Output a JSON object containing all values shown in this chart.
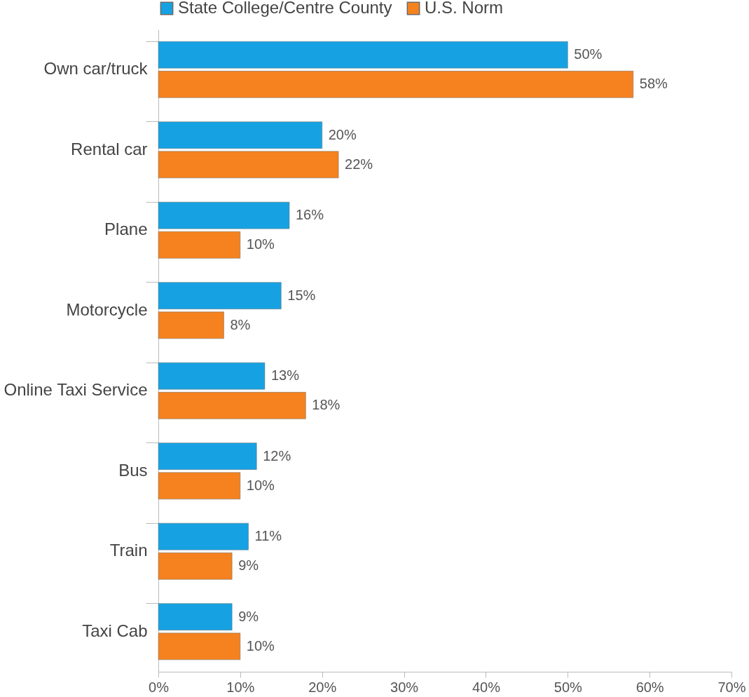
{
  "chart_data": {
    "type": "bar",
    "orientation": "horizontal",
    "categories": [
      "Own car/truck",
      "Rental car",
      "Plane",
      "Motorcycle",
      "Online Taxi Service",
      "Bus",
      "Train",
      "Taxi Cab"
    ],
    "series": [
      {
        "name": "State College/Centre County",
        "color": "#16a2e2",
        "values": [
          50,
          20,
          16,
          15,
          13,
          12,
          11,
          9
        ],
        "value_labels": [
          "50%",
          "20%",
          "16%",
          "15%",
          "13%",
          "12%",
          "11%",
          "9%"
        ]
      },
      {
        "name": "U.S. Norm",
        "color": "#f5821f",
        "values": [
          58,
          22,
          10,
          8,
          18,
          10,
          9,
          10
        ],
        "value_labels": [
          "58%",
          "22%",
          "10%",
          "8%",
          "18%",
          "10%",
          "9%",
          "10%"
        ]
      }
    ],
    "xlim": [
      0,
      70
    ],
    "xticks": [
      {
        "value": 0,
        "label": "0%"
      },
      {
        "value": 10,
        "label": "10%"
      },
      {
        "value": 20,
        "label": "20%"
      },
      {
        "value": 30,
        "label": "30%"
      },
      {
        "value": 40,
        "label": "40%"
      },
      {
        "value": 50,
        "label": "50%"
      },
      {
        "value": 60,
        "label": "60%"
      },
      {
        "value": 70,
        "label": "70%"
      }
    ],
    "grid": false,
    "legend": "top"
  }
}
